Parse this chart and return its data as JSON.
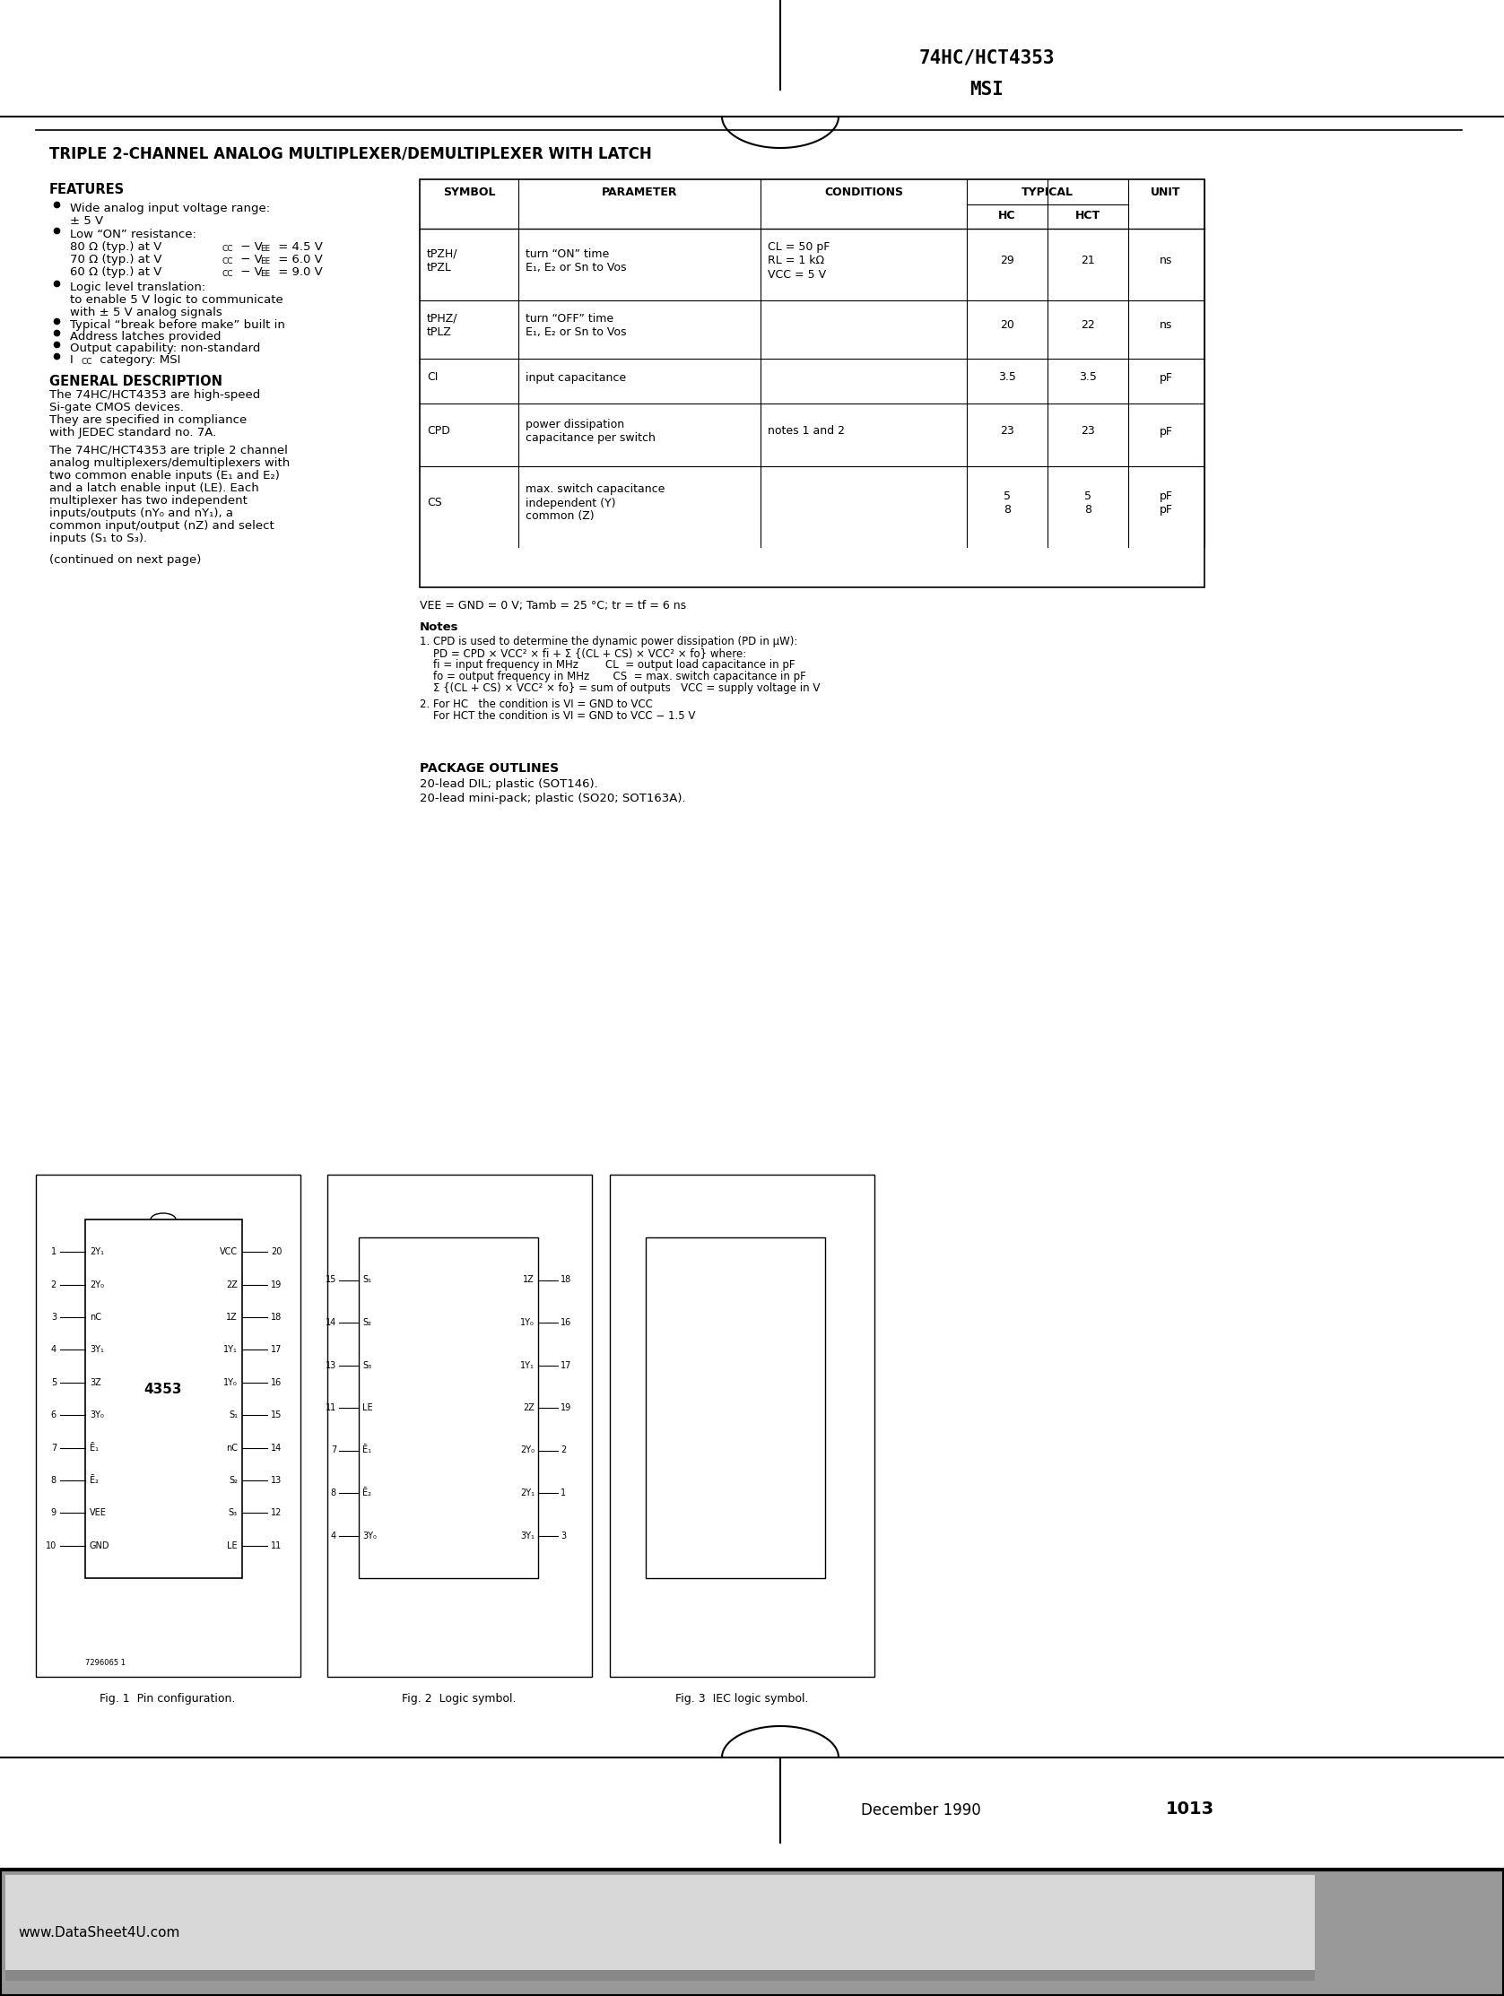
{
  "title_main": "74HC/HCT4353",
  "subtitle_main": "MSI",
  "page_title": "TRIPLE 2-CHANNEL ANALOG MULTIPLEXER/DEMULTIPLEXER WITH LATCH",
  "features_title": "FEATURES",
  "gen_desc_title": "GENERAL DESCRIPTION",
  "table_col_headers": [
    "SYMBOL",
    "PARAMETER",
    "CONDITIONS",
    "TYPICAL",
    "UNIT"
  ],
  "typical_subheaders": [
    "HC",
    "HCT"
  ],
  "vee_note": "VEE = GND = 0 V; Tamb = 25 C; tr = tf = 6 ns",
  "notes_title": "Notes",
  "pkg_title": "PACKAGE OUTLINES",
  "fig1_caption": "Fig. 1  Pin configuration.",
  "fig2_caption": "Fig. 2  Logic symbol.",
  "fig3_caption": "Fig. 3  IEC logic symbol.",
  "footer_date": "December 1990",
  "footer_page": "1013",
  "watermark": "www.DataSheet4U.com",
  "bg_color": "#ffffff",
  "text_color": "#000000"
}
